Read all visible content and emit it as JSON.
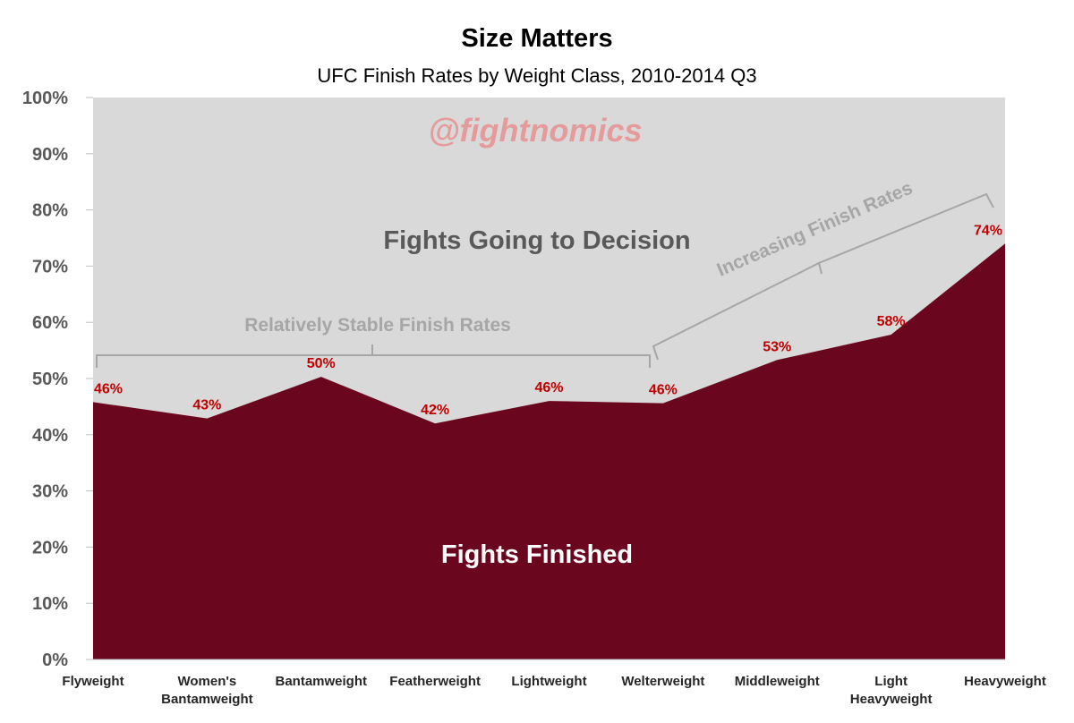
{
  "chart_data": {
    "type": "area",
    "title": "Size Matters",
    "subtitle": "UFC Finish Rates by Weight Class, 2010-2014 Q3",
    "categories": [
      [
        "Flyweight"
      ],
      [
        "Women's",
        "Bantamweight"
      ],
      [
        "Bantamweight"
      ],
      [
        "Featherweight"
      ],
      [
        "Lightweight"
      ],
      [
        "Welterweight"
      ],
      [
        "Middleweight"
      ],
      [
        "Light",
        "Heavyweight"
      ],
      [
        "Heavyweight"
      ]
    ],
    "series": [
      {
        "name": "Fights Finished",
        "values": [
          45.8,
          42.9,
          50.3,
          42.0,
          46.0,
          45.6,
          53.3,
          57.8,
          74.0
        ],
        "data_labels": [
          "46%",
          "43%",
          "50%",
          "42%",
          "46%",
          "46%",
          "53%",
          "58%",
          "74%"
        ],
        "color": "#6a061d"
      },
      {
        "name": "Fights Going to Decision",
        "description_label": "Fights Going to Decision",
        "color": "#d9d9d9"
      }
    ],
    "ylim": [
      0,
      100
    ],
    "yticks": [
      "0%",
      "10%",
      "20%",
      "30%",
      "40%",
      "50%",
      "60%",
      "70%",
      "80%",
      "90%",
      "100%"
    ],
    "watermark": "@fightnomics",
    "annotations": {
      "stable": "Relatively Stable Finish Rates",
      "increasing": "Increasing Finish Rates"
    },
    "area_labels": {
      "decision": "Fights Going to Decision",
      "finished": "Fights Finished"
    },
    "colors": {
      "finished": "#6a061d",
      "decision": "#d9d9d9",
      "data_label": "#c00000",
      "annotation": "#a6a6a6"
    }
  }
}
